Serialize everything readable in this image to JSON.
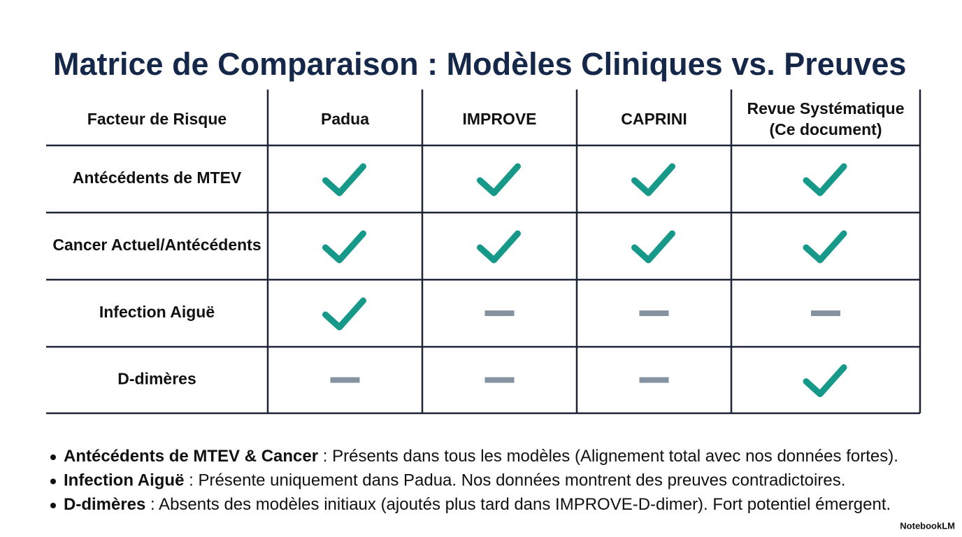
{
  "header": {
    "title": "Matrice de Comparaison : Modèles Cliniques vs. Preuves"
  },
  "table": {
    "headers": [
      "Facteur de Risque",
      "Padua",
      "IMPROVE",
      "CAPRINI",
      [
        "Revue Systématique",
        "(Ce document)"
      ]
    ],
    "rows": [
      {
        "label": "Antécédents de MTEV",
        "values": [
          true,
          true,
          true,
          true
        ]
      },
      {
        "label": "Cancer Actuel/Antécédents",
        "values": [
          true,
          true,
          true,
          true
        ]
      },
      {
        "label": "Infection Aiguë",
        "values": [
          true,
          false,
          false,
          false
        ]
      },
      {
        "label": "D-dimères",
        "values": [
          false,
          false,
          false,
          true
        ]
      }
    ]
  },
  "notes": [
    {
      "bold": "Antécédents de MTEV & Cancer",
      "text": " : Présents dans tous les modèles (Alignement total avec nos données fortes)."
    },
    {
      "bold": "Infection Aiguë",
      "text": " : Présente uniquement dans Padua. Nos données montrent des preuves contradictoires."
    },
    {
      "bold": "D-dimères",
      "text": " : Absents des modèles initiaux (ajoutés plus tard dans IMPROVE-D-dimer). Fort potentiel émergent."
    }
  ],
  "footer": {
    "brand": "NotebookLM"
  }
}
